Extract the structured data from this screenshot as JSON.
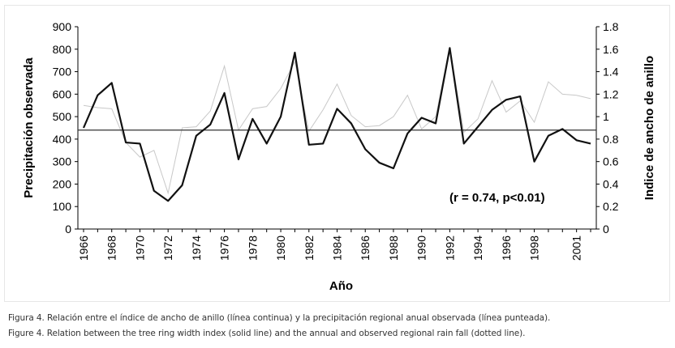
{
  "figure": {
    "caption_es": "Figura 4. Relación entre el índice de ancho de anillo (línea continua) y la precipitación regional anual observada (línea punteada).",
    "caption_en": "Figure 4. Relation between the tree ring width index (solid line) and the annual and observed regional rain fall (dotted line)."
  },
  "chart_data": {
    "type": "line",
    "xlabel": "Año",
    "ylabel_left": "Precipitación observada",
    "ylabel_right": "Indice de ancho de anillo",
    "annotation": "(r = 0.74, p<0.01)",
    "x": [
      1966,
      1967,
      1968,
      1969,
      1970,
      1971,
      1972,
      1973,
      1974,
      1975,
      1976,
      1977,
      1978,
      1979,
      1980,
      1981,
      1982,
      1983,
      1984,
      1985,
      1986,
      1987,
      1988,
      1989,
      1990,
      1991,
      1992,
      1993,
      1994,
      1995,
      1996,
      1997,
      1998,
      1999,
      2000,
      2001,
      2002
    ],
    "x_tick_labels": [
      "1966",
      "1968",
      "1970",
      "1972",
      "1974",
      "1976",
      "1978",
      "1980",
      "1982",
      "1984",
      "1986",
      "1988",
      "1990",
      "1992",
      "1994",
      "1996",
      "1998",
      "2001"
    ],
    "x_tick_years": [
      1966,
      1968,
      1970,
      1972,
      1974,
      1976,
      1978,
      1980,
      1982,
      1984,
      1986,
      1988,
      1990,
      1992,
      1994,
      1996,
      1998,
      2001
    ],
    "y_left_ticks": [
      "0",
      "100",
      "200",
      "300",
      "400",
      "500",
      "600",
      "700",
      "800",
      "900"
    ],
    "y_left_range": [
      0,
      900
    ],
    "y_right_ticks": [
      "0",
      "0.2",
      "0.4",
      "0.6",
      "0.8",
      "1",
      "1.2",
      "1.4",
      "1.6",
      "1.8"
    ],
    "y_right_range": [
      0,
      1.8
    ],
    "reference_line_right": 0.88,
    "series": [
      {
        "axis": "right",
        "style": "solid",
        "color": "#111111",
        "values": [
          0.9,
          1.19,
          1.3,
          0.77,
          0.76,
          0.34,
          0.25,
          0.39,
          0.83,
          0.93,
          1.21,
          0.62,
          0.98,
          0.76,
          1.0,
          1.57,
          0.75,
          0.76,
          1.07,
          0.94,
          0.71,
          0.59,
          0.54,
          0.85,
          0.99,
          0.94,
          1.61,
          0.76,
          0.91,
          1.06,
          1.15,
          1.18,
          0.6,
          0.83,
          0.89,
          0.79,
          0.76
        ]
      },
      {
        "axis": "left",
        "style": "dotted",
        "color": "#c8c8c8",
        "values": [
          550,
          540,
          535,
          385,
          320,
          350,
          160,
          450,
          455,
          525,
          725,
          440,
          535,
          545,
          625,
          745,
          435,
          530,
          645,
          505,
          455,
          460,
          500,
          595,
          445,
          500,
          810,
          430,
          490,
          660,
          520,
          570,
          475,
          655,
          600,
          595,
          580
        ]
      }
    ]
  }
}
